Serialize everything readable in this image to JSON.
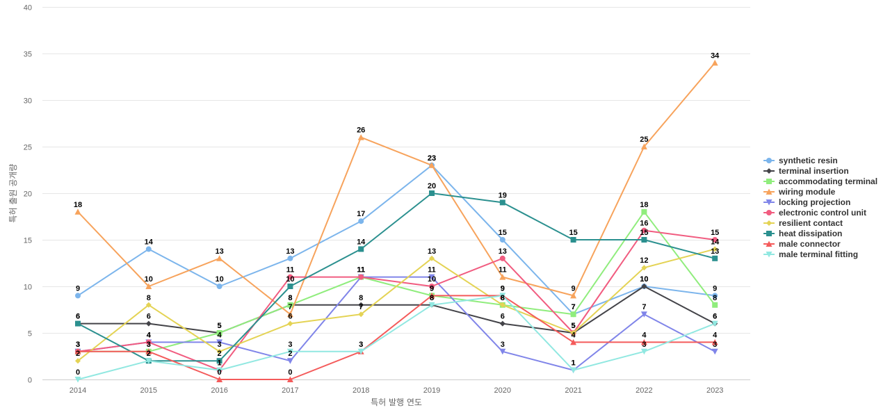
{
  "chart_data": {
    "type": "line",
    "title": "",
    "xlabel": "특허 발행 연도",
    "ylabel": "특허 출원 공개량",
    "x": [
      "2014",
      "2015",
      "2016",
      "2017",
      "2018",
      "2019",
      "2020",
      "2021",
      "2022",
      "2023"
    ],
    "ylim": [
      0,
      40
    ],
    "yticks": [
      0,
      5,
      10,
      15,
      20,
      25,
      30,
      35,
      40
    ],
    "grid": true,
    "legend_position": "right",
    "series": [
      {
        "name": "synthetic resin",
        "color": "#7cb5ec",
        "marker": "circle",
        "values": [
          9,
          14,
          10,
          13,
          17,
          23,
          15,
          7,
          10,
          9
        ]
      },
      {
        "name": "terminal insertion",
        "color": "#434348",
        "marker": "diamond",
        "values": [
          6,
          6,
          5,
          8,
          8,
          8,
          6,
          5,
          10,
          6
        ]
      },
      {
        "name": "accommodating terminal",
        "color": "#90ed7d",
        "marker": "square",
        "values": [
          3,
          3,
          5,
          8,
          11,
          9,
          8,
          7,
          18,
          8
        ]
      },
      {
        "name": "wiring module",
        "color": "#f7a35c",
        "marker": "triangle",
        "values": [
          18,
          10,
          13,
          7,
          26,
          23,
          11,
          9,
          25,
          34
        ]
      },
      {
        "name": "locking projection",
        "color": "#8085e9",
        "marker": "triangle-down",
        "values": [
          3,
          4,
          4,
          2,
          11,
          11,
          3,
          1,
          7,
          3
        ]
      },
      {
        "name": "electronic control unit",
        "color": "#f15c80",
        "marker": "circle",
        "values": [
          3,
          4,
          1,
          11,
          11,
          10,
          13,
          5,
          16,
          15
        ]
      },
      {
        "name": "resilient contact",
        "color": "#e4d354",
        "marker": "diamond",
        "values": [
          2,
          8,
          3,
          6,
          7,
          13,
          8,
          5,
          12,
          14
        ]
      },
      {
        "name": "heat dissipation",
        "color": "#2b908f",
        "marker": "square",
        "values": [
          6,
          2,
          2,
          10,
          14,
          20,
          19,
          15,
          15,
          13
        ]
      },
      {
        "name": "male connector",
        "color": "#f45b5b",
        "marker": "triangle",
        "values": [
          3,
          3,
          0,
          0,
          3,
          9,
          9,
          4,
          4,
          4
        ]
      },
      {
        "name": "male terminal fitting",
        "color": "#91e8e1",
        "marker": "triangle-down",
        "values": [
          0,
          2,
          1,
          3,
          3,
          8,
          9,
          1,
          3,
          6
        ]
      }
    ]
  }
}
